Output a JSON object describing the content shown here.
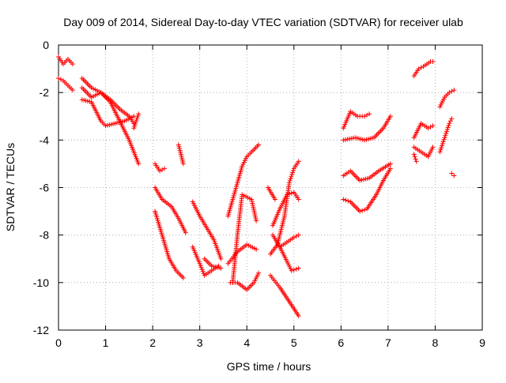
{
  "chart_data": {
    "type": "scatter",
    "title": "Day 009 of 2014, Sidereal Day-to-day VTEC variation (SDTVAR) for receiver ulab",
    "xlabel": "GPS time / hours",
    "ylabel": "SDTVAR / TECUs",
    "xlim": [
      0,
      9
    ],
    "ylim": [
      -12,
      0
    ],
    "xticks": [
      0,
      1,
      2,
      3,
      4,
      5,
      6,
      7,
      8,
      9
    ],
    "yticks": [
      0,
      -2,
      -4,
      -6,
      -8,
      -10,
      -12
    ],
    "xtick_labels": [
      "0",
      "1",
      "2",
      "3",
      "4",
      "5",
      "6",
      "7",
      "8",
      "9"
    ],
    "ytick_labels": [
      "0",
      "-2",
      "-4",
      "-6",
      "-8",
      "-10",
      "-12"
    ],
    "grid": true,
    "marker": "+",
    "color": "#ff0000",
    "series": [
      {
        "x": [
          0.0,
          0.1,
          0.2,
          0.3
        ],
        "y": [
          -0.5,
          -0.8,
          -0.6,
          -0.8
        ]
      },
      {
        "x": [
          0.0,
          0.1,
          0.2,
          0.3
        ],
        "y": [
          -1.4,
          -1.5,
          -1.7,
          -1.9
        ]
      },
      {
        "x": [
          0.5,
          0.7,
          0.9,
          1.1,
          1.3,
          1.5,
          1.6
        ],
        "y": [
          -1.4,
          -1.8,
          -2.0,
          -2.3,
          -2.7,
          -3.0,
          -3.3
        ]
      },
      {
        "x": [
          0.5,
          0.7,
          0.9,
          1.0,
          1.2,
          1.4,
          1.6
        ],
        "y": [
          -2.3,
          -2.4,
          -3.2,
          -3.4,
          -3.3,
          -3.2,
          -3.0
        ]
      },
      {
        "x": [
          0.5,
          0.7,
          0.9,
          1.1,
          1.3,
          1.5,
          1.7
        ],
        "y": [
          -1.8,
          -2.2,
          -2.0,
          -2.4,
          -3.2,
          -4.0,
          -5.0
        ]
      },
      {
        "x": [
          1.6,
          1.7
        ],
        "y": [
          -3.5,
          -2.9
        ]
      },
      {
        "x": [
          2.05,
          2.15,
          2.25
        ],
        "y": [
          -5.0,
          -5.3,
          -5.2
        ]
      },
      {
        "x": [
          2.05,
          2.2,
          2.4,
          2.55,
          2.7
        ],
        "y": [
          -6.0,
          -6.5,
          -6.8,
          -7.3,
          -7.9
        ]
      },
      {
        "x": [
          2.05,
          2.2,
          2.35,
          2.5,
          2.65
        ],
        "y": [
          -7.0,
          -8.0,
          -9.0,
          -9.5,
          -9.8
        ]
      },
      {
        "x": [
          2.55,
          2.65
        ],
        "y": [
          -4.2,
          -5.0
        ]
      },
      {
        "x": [
          2.85,
          3.0,
          3.15,
          3.3,
          3.45
        ],
        "y": [
          -6.6,
          -7.2,
          -7.7,
          -8.2,
          -9.0
        ]
      },
      {
        "x": [
          2.85,
          3.0,
          3.1,
          3.25,
          3.4
        ],
        "y": [
          -8.5,
          -9.2,
          -9.7,
          -9.5,
          -9.3
        ]
      },
      {
        "x": [
          3.1,
          3.25,
          3.45
        ],
        "y": [
          -9.0,
          -9.3,
          -9.4
        ]
      },
      {
        "x": [
          3.6,
          3.7,
          3.8,
          3.9,
          4.0,
          4.1,
          4.25
        ],
        "y": [
          -7.2,
          -6.5,
          -5.8,
          -5.1,
          -4.7,
          -4.5,
          -4.2
        ]
      },
      {
        "x": [
          3.6,
          3.8,
          4.0,
          4.2
        ],
        "y": [
          -9.2,
          -8.7,
          -8.4,
          -8.6
        ]
      },
      {
        "x": [
          3.7,
          3.8,
          3.9,
          4.1,
          4.2
        ],
        "y": [
          -10.0,
          -8.0,
          -6.3,
          -6.5,
          -7.4
        ]
      },
      {
        "x": [
          3.65,
          3.8,
          4.0,
          4.15,
          4.25
        ],
        "y": [
          -10.0,
          -10.0,
          -10.3,
          -10.0,
          -9.6
        ]
      },
      {
        "x": [
          4.45,
          4.6
        ],
        "y": [
          -6.0,
          -6.5
        ]
      },
      {
        "x": [
          4.55,
          4.7,
          4.85,
          5.0,
          5.1
        ],
        "y": [
          -7.6,
          -6.9,
          -6.3,
          -6.2,
          -6.5
        ]
      },
      {
        "x": [
          4.5,
          4.65,
          4.8,
          4.9,
          5.0,
          5.1
        ],
        "y": [
          -8.8,
          -8.4,
          -7.2,
          -5.8,
          -5.2,
          -4.9
        ]
      },
      {
        "x": [
          4.55,
          4.7,
          4.85,
          5.0,
          5.1
        ],
        "y": [
          -8.0,
          -8.5,
          -8.3,
          -8.1,
          -8.0
        ]
      },
      {
        "x": [
          4.7,
          4.85,
          4.95,
          5.1
        ],
        "y": [
          -8.5,
          -9.1,
          -9.5,
          -9.4
        ]
      },
      {
        "x": [
          4.5,
          4.7,
          4.9,
          5.1
        ],
        "y": [
          -9.7,
          -10.2,
          -10.8,
          -11.4
        ]
      },
      {
        "x": [
          6.05,
          6.2,
          6.35,
          6.5,
          6.6
        ],
        "y": [
          -3.5,
          -2.8,
          -3.0,
          -3.0,
          -2.9
        ]
      },
      {
        "x": [
          6.05,
          6.3,
          6.5,
          6.7,
          6.9,
          7.05
        ],
        "y": [
          -4.0,
          -3.9,
          -4.0,
          -3.9,
          -3.5,
          -3.0
        ]
      },
      {
        "x": [
          6.05,
          6.2,
          6.4,
          6.6,
          6.8,
          7.05
        ],
        "y": [
          -5.5,
          -5.3,
          -5.7,
          -5.6,
          -5.3,
          -5.0
        ]
      },
      {
        "x": [
          6.05,
          6.2,
          6.4,
          6.55,
          6.75,
          6.9,
          7.05
        ],
        "y": [
          -6.5,
          -6.6,
          -7.0,
          -6.9,
          -6.3,
          -5.7,
          -5.2
        ]
      },
      {
        "x": [
          7.55,
          7.65,
          7.75,
          7.9,
          7.95
        ],
        "y": [
          -1.3,
          -1.0,
          -0.9,
          -0.7,
          -0.7
        ]
      },
      {
        "x": [
          7.55,
          7.7,
          7.85,
          7.95
        ],
        "y": [
          -3.9,
          -3.3,
          -3.5,
          -3.4
        ]
      },
      {
        "x": [
          7.55,
          7.7,
          7.85,
          7.95
        ],
        "y": [
          -4.3,
          -4.5,
          -4.7,
          -4.3
        ]
      },
      {
        "x": [
          7.55,
          7.6
        ],
        "y": [
          -4.6,
          -4.9
        ]
      },
      {
        "x": [
          8.1,
          8.2,
          8.3,
          8.35
        ],
        "y": [
          -4.5,
          -3.9,
          -3.3,
          -3.1
        ]
      },
      {
        "x": [
          8.1,
          8.2,
          8.3,
          8.4
        ],
        "y": [
          -2.6,
          -2.2,
          -2.0,
          -1.9
        ]
      },
      {
        "x": [
          8.35,
          8.4
        ],
        "y": [
          -5.4,
          -5.5
        ]
      }
    ]
  }
}
